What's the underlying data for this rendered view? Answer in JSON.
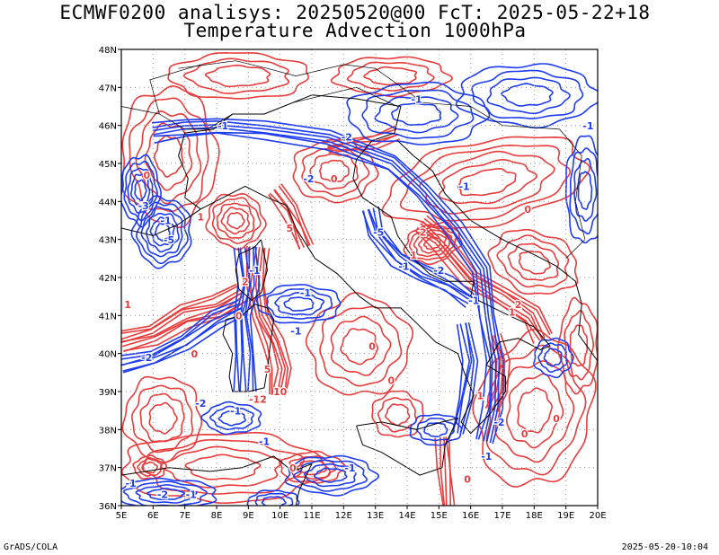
{
  "header": {
    "title_line1": "ECMWF0200 analisys: 20250520@00 FcT: 2025-05-22+18",
    "title_line2": "Temperature Advection 1000hPa"
  },
  "footer": {
    "credit": "GrADS/COLA",
    "timestamp": "2025-05-20-10:04"
  },
  "map": {
    "lon_labels": [
      "5E",
      "6E",
      "7E",
      "8E",
      "9E",
      "10E",
      "11E",
      "12E",
      "13E",
      "14E",
      "15E",
      "16E",
      "17E",
      "18E",
      "19E",
      "20E"
    ],
    "lat_labels": [
      "36N",
      "37N",
      "38N",
      "39N",
      "40N",
      "41N",
      "42N",
      "43N",
      "44N",
      "45N",
      "46N",
      "47N",
      "48N"
    ],
    "lon_range": [
      5,
      20
    ],
    "lat_range": [
      36,
      48
    ],
    "grid": "dotted",
    "colors": {
      "warm_advection": "#e83c3c",
      "cold_advection": "#1e3cf0",
      "coastline": "#000000",
      "gridline": "#9a9a9a"
    },
    "contour_labels": [
      {
        "text": "0",
        "color": "red",
        "lon": 5.8,
        "lat": 44.6
      },
      {
        "text": "-1",
        "color": "blue",
        "lon": 6.4,
        "lat": 43.4
      },
      {
        "text": "-5",
        "color": "blue",
        "lon": 6.5,
        "lat": 42.9
      },
      {
        "text": "1",
        "color": "red",
        "lon": 7.5,
        "lat": 43.5
      },
      {
        "text": "-3",
        "color": "blue",
        "lon": 5.7,
        "lat": 43.8
      },
      {
        "text": "2",
        "color": "red",
        "lon": 8.9,
        "lat": 41.8
      },
      {
        "text": "-1",
        "color": "blue",
        "lon": 9.2,
        "lat": 42.1
      },
      {
        "text": "5",
        "color": "red",
        "lon": 10.3,
        "lat": 43.2
      },
      {
        "text": "-2",
        "color": "blue",
        "lon": 10.9,
        "lat": 44.5
      },
      {
        "text": "-1",
        "color": "blue",
        "lon": 8.2,
        "lat": 45.9
      },
      {
        "text": "-2",
        "color": "blue",
        "lon": 12.1,
        "lat": 45.6
      },
      {
        "text": "-1",
        "color": "blue",
        "lon": 14.3,
        "lat": 46.6
      },
      {
        "text": "-1",
        "color": "blue",
        "lon": 19.7,
        "lat": 45.9
      },
      {
        "text": "-5",
        "color": "blue",
        "lon": 13.1,
        "lat": 43.1
      },
      {
        "text": "2",
        "color": "red",
        "lon": 14.5,
        "lat": 43.1
      },
      {
        "text": "1",
        "color": "red",
        "lon": 14.2,
        "lat": 42.5
      },
      {
        "text": "-1",
        "color": "blue",
        "lon": 13.9,
        "lat": 42.2
      },
      {
        "text": "-2",
        "color": "blue",
        "lon": 15.0,
        "lat": 42.1
      },
      {
        "text": "-1",
        "color": "blue",
        "lon": 10.8,
        "lat": 41.5
      },
      {
        "text": "2",
        "color": "red",
        "lon": 17.5,
        "lat": 41.2
      },
      {
        "text": "1",
        "color": "red",
        "lon": 17.3,
        "lat": 41.0
      },
      {
        "text": "-1",
        "color": "blue",
        "lon": 16.1,
        "lat": 41.3
      },
      {
        "text": "1",
        "color": "red",
        "lon": 5.2,
        "lat": 41.2
      },
      {
        "text": "-2",
        "color": "blue",
        "lon": 5.8,
        "lat": 39.8
      },
      {
        "text": "0",
        "color": "red",
        "lon": 7.3,
        "lat": 39.9
      },
      {
        "text": "0",
        "color": "red",
        "lon": 8.7,
        "lat": 40.9
      },
      {
        "text": "5",
        "color": "red",
        "lon": 9.6,
        "lat": 39.5
      },
      {
        "text": "-1",
        "color": "blue",
        "lon": 10.5,
        "lat": 40.5
      },
      {
        "text": "10",
        "color": "red",
        "lon": 10.0,
        "lat": 38.9
      },
      {
        "text": "-12",
        "color": "red",
        "lon": 9.3,
        "lat": 38.7
      },
      {
        "text": "-2",
        "color": "blue",
        "lon": 7.5,
        "lat": 38.6
      },
      {
        "text": "-1",
        "color": "blue",
        "lon": 8.6,
        "lat": 38.4
      },
      {
        "text": "0",
        "color": "red",
        "lon": 12.9,
        "lat": 40.1
      },
      {
        "text": "0",
        "color": "red",
        "lon": 13.5,
        "lat": 39.2
      },
      {
        "text": "1",
        "color": "red",
        "lon": 16.3,
        "lat": 38.8
      },
      {
        "text": "-2",
        "color": "blue",
        "lon": 16.9,
        "lat": 38.1
      },
      {
        "text": "-1",
        "color": "blue",
        "lon": 16.5,
        "lat": 37.2
      },
      {
        "text": "0",
        "color": "red",
        "lon": 17.7,
        "lat": 37.8
      },
      {
        "text": "0",
        "color": "red",
        "lon": 18.7,
        "lat": 38.2
      },
      {
        "text": "-1",
        "color": "blue",
        "lon": 9.5,
        "lat": 37.6
      },
      {
        "text": "0",
        "color": "red",
        "lon": 10.4,
        "lat": 36.9
      },
      {
        "text": "-1",
        "color": "blue",
        "lon": 12.2,
        "lat": 36.9
      },
      {
        "text": "-1",
        "color": "blue",
        "lon": 5.3,
        "lat": 36.5
      },
      {
        "text": "-2",
        "color": "blue",
        "lon": 6.3,
        "lat": 36.2
      },
      {
        "text": "-1",
        "color": "blue",
        "lon": 7.2,
        "lat": 36.2
      },
      {
        "text": "0",
        "color": "red",
        "lon": 15.9,
        "lat": 36.6
      },
      {
        "text": "-1",
        "color": "blue",
        "lon": 15.8,
        "lat": 44.3
      },
      {
        "text": "0",
        "color": "red",
        "lon": 17.8,
        "lat": 43.7
      },
      {
        "text": "0",
        "color": "red",
        "lon": 11.7,
        "lat": 44.5
      }
    ]
  }
}
